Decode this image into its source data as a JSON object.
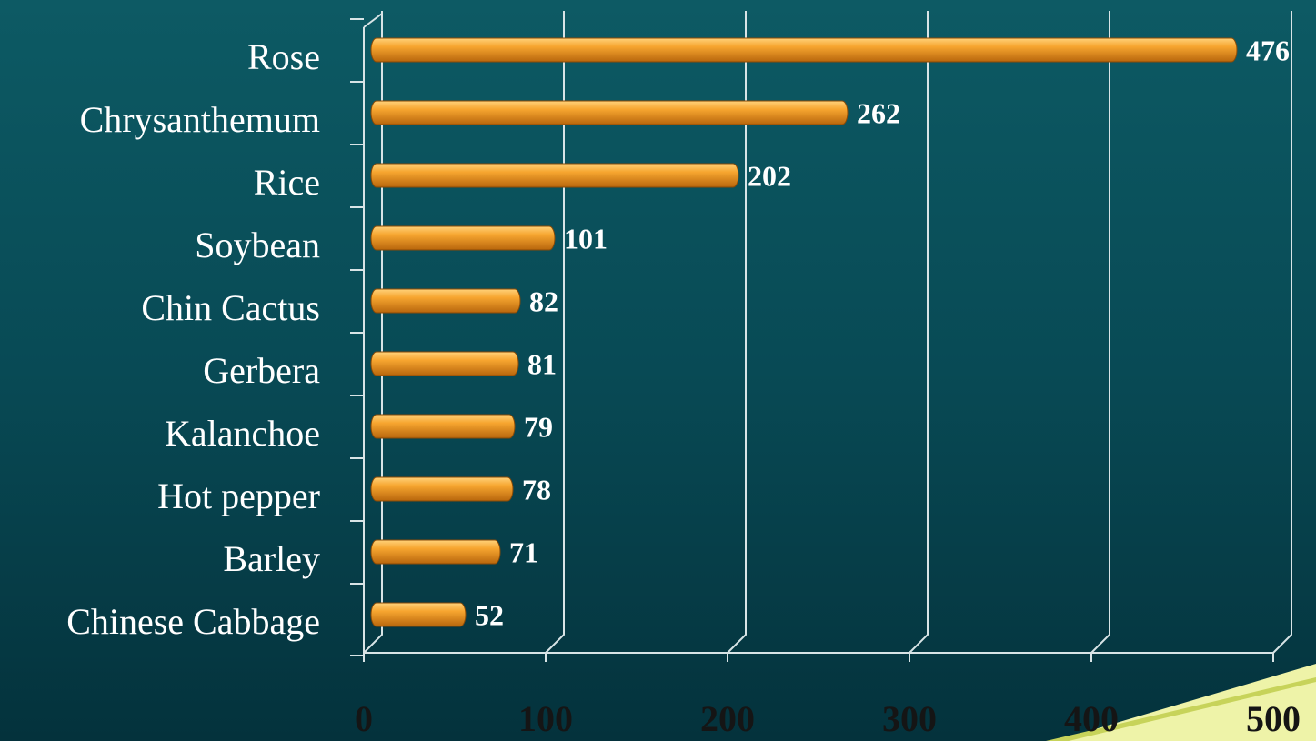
{
  "chart_data": {
    "type": "bar",
    "orientation": "horizontal",
    "categories": [
      "Rose",
      "Chrysanthemum",
      "Rice",
      "Soybean",
      "Chin Cactus",
      "Gerbera",
      "Kalanchoe",
      "Hot pepper",
      "Barley",
      "Chinese Cabbage"
    ],
    "values": [
      476,
      262,
      202,
      101,
      82,
      81,
      79,
      78,
      71,
      52
    ],
    "color": "#f5a02a",
    "xlim": [
      0,
      500
    ],
    "xticks": [
      0,
      100,
      200,
      300,
      400,
      500
    ],
    "grid": true
  }
}
